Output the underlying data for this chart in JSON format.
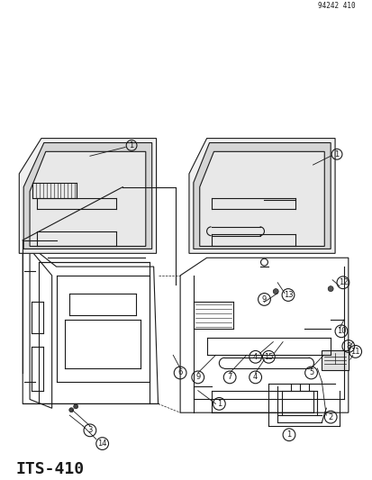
{
  "title": "ITS-410",
  "part_id": "94242 410",
  "bg_color": "#ffffff",
  "line_color": "#1a1a1a",
  "title_fontsize": 13,
  "fig_width": 4.14,
  "fig_height": 5.33,
  "dpi": 100
}
